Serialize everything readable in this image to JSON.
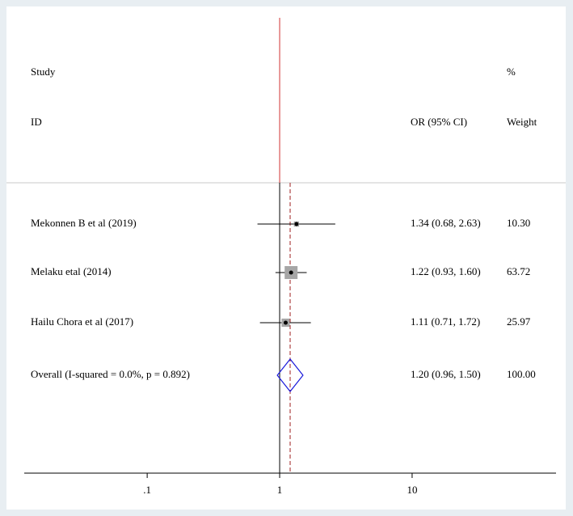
{
  "chart_data": {
    "type": "forest",
    "header": {
      "study": "Study",
      "id": "ID",
      "effect": "OR (95% CI)",
      "pct": "%",
      "weight": "Weight"
    },
    "studies": [
      {
        "name": "Mekonnen B et al (2019)",
        "or": 1.34,
        "lo": 0.68,
        "hi": 2.63,
        "weight": 10.3,
        "ci_label": "1.34 (0.68, 2.63)",
        "weight_label": "10.30"
      },
      {
        "name": "Melaku etal (2014)",
        "or": 1.22,
        "lo": 0.93,
        "hi": 1.6,
        "weight": 63.72,
        "ci_label": "1.22 (0.93, 1.60)",
        "weight_label": "63.72"
      },
      {
        "name": "Hailu Chora et al (2017)",
        "or": 1.11,
        "lo": 0.71,
        "hi": 1.72,
        "weight": 25.97,
        "ci_label": "1.11 (0.71, 1.72)",
        "weight_label": "25.97"
      }
    ],
    "overall": {
      "name": "Overall  (I-squared = 0.0%, p = 0.892)",
      "or": 1.2,
      "lo": 0.96,
      "hi": 1.5,
      "weight": 100,
      "ci_label": "1.20 (0.96, 1.50)",
      "weight_label": "100.00"
    },
    "xlim": [
      0.0118,
      122
    ],
    "xticks": [
      {
        "value": 0.1,
        "label": ".1"
      },
      1,
      10
    ],
    "log_x": true,
    "reference_line": 1,
    "box_color": "#a6a6a6",
    "diamond_color": "#1a1adb",
    "overall_line_color": "#a02020",
    "header_line_color": "#d03030"
  }
}
